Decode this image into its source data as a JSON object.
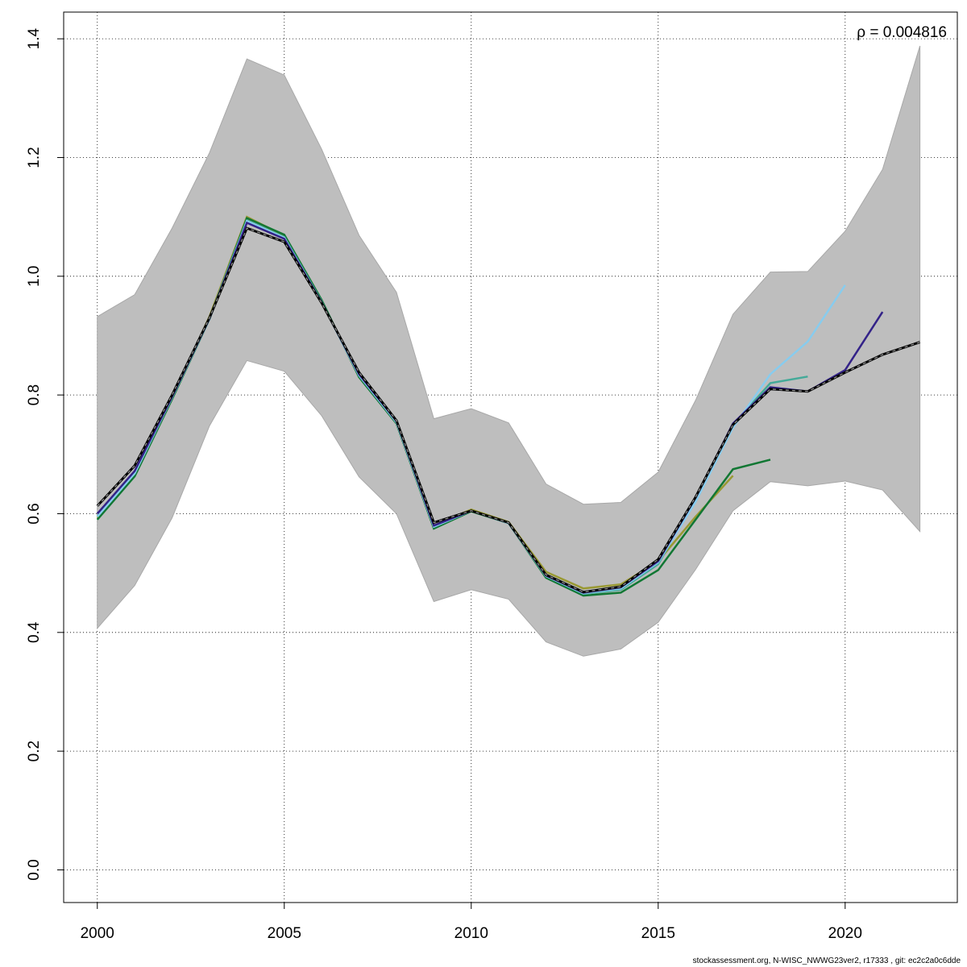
{
  "chart_data": {
    "type": "line",
    "title": "",
    "xlabel": "",
    "ylabel": "",
    "xlim": [
      1999.1,
      2023.0
    ],
    "ylim": [
      -0.055,
      1.445
    ],
    "xticks": [
      2000,
      2005,
      2010,
      2015,
      2020
    ],
    "yticks": [
      0.0,
      0.2,
      0.4,
      0.6,
      0.8,
      1.0,
      1.2,
      1.4
    ],
    "ytick_labels": [
      "0.0",
      "0.2",
      "0.4",
      "0.6",
      "0.8",
      "1.0",
      "1.2",
      "1.4"
    ],
    "xtick_labels": [
      "2000",
      "2005",
      "2010",
      "2015",
      "2020"
    ],
    "grid": true,
    "annotation": "ρ = 0.004816",
    "band": {
      "color": "#bebebe",
      "x": [
        2000,
        2001,
        2002,
        2003,
        2004,
        2005,
        2006,
        2007,
        2008,
        2009,
        2010,
        2011,
        2012,
        2013,
        2014,
        2015,
        2016,
        2017,
        2018,
        2019,
        2020,
        2021,
        2022
      ],
      "upper": [
        0.932,
        0.969,
        1.081,
        1.208,
        1.366,
        1.339,
        1.214,
        1.069,
        0.973,
        0.76,
        0.777,
        0.753,
        0.65,
        0.616,
        0.619,
        0.67,
        0.791,
        0.936,
        1.007,
        1.008,
        1.076,
        1.18,
        1.388
      ],
      "lower": [
        0.407,
        0.479,
        0.593,
        0.748,
        0.858,
        0.84,
        0.765,
        0.662,
        0.6,
        0.452,
        0.472,
        0.456,
        0.384,
        0.36,
        0.372,
        0.417,
        0.506,
        0.605,
        0.654,
        0.647,
        0.655,
        0.64,
        0.57
      ]
    },
    "series": [
      {
        "color": "#999933",
        "start": 2000,
        "values": [
          0.593,
          0.666,
          0.795,
          0.932,
          1.1,
          1.068,
          0.958,
          0.832,
          0.753,
          0.58,
          0.607,
          0.586,
          0.502,
          0.474,
          0.481,
          0.52,
          0.595,
          0.664
        ]
      },
      {
        "color": "#117733",
        "start": 2000,
        "values": [
          0.59,
          0.663,
          0.793,
          0.928,
          1.098,
          1.07,
          0.96,
          0.83,
          0.752,
          0.575,
          0.604,
          0.584,
          0.492,
          0.462,
          0.467,
          0.505,
          0.59,
          0.675,
          0.691
        ]
      },
      {
        "color": "#44AA99",
        "start": 2000,
        "values": [
          0.596,
          0.668,
          0.796,
          0.929,
          1.094,
          1.066,
          0.957,
          0.833,
          0.754,
          0.578,
          0.605,
          0.584,
          0.495,
          0.465,
          0.472,
          0.515,
          0.625,
          0.75,
          0.82,
          0.831
        ]
      },
      {
        "color": "#88CCEE",
        "start": 2000,
        "values": [
          0.595,
          0.668,
          0.796,
          0.928,
          1.093,
          1.065,
          0.956,
          0.833,
          0.754,
          0.578,
          0.605,
          0.584,
          0.495,
          0.466,
          0.474,
          0.518,
          0.62,
          0.745,
          0.835,
          0.89,
          0.985
        ]
      },
      {
        "color": "#332288",
        "start": 2000,
        "values": [
          0.6,
          0.672,
          0.797,
          0.929,
          1.09,
          1.063,
          0.956,
          0.835,
          0.756,
          0.58,
          0.605,
          0.585,
          0.496,
          0.467,
          0.476,
          0.52,
          0.627,
          0.752,
          0.813,
          0.806,
          0.842,
          0.94
        ]
      },
      {
        "color": "#000000",
        "dashed": true,
        "start": 2000,
        "values": [
          0.613,
          0.681,
          0.8,
          0.93,
          1.081,
          1.058,
          0.955,
          0.838,
          0.757,
          0.585,
          0.605,
          0.585,
          0.497,
          0.468,
          0.477,
          0.523,
          0.628,
          0.75,
          0.81,
          0.806,
          0.838,
          0.868,
          0.889
        ]
      }
    ]
  },
  "footer": "stockassessment.org, N-WISC_NWWG23ver2, r17333 , git: ec2c2a0c6dde"
}
